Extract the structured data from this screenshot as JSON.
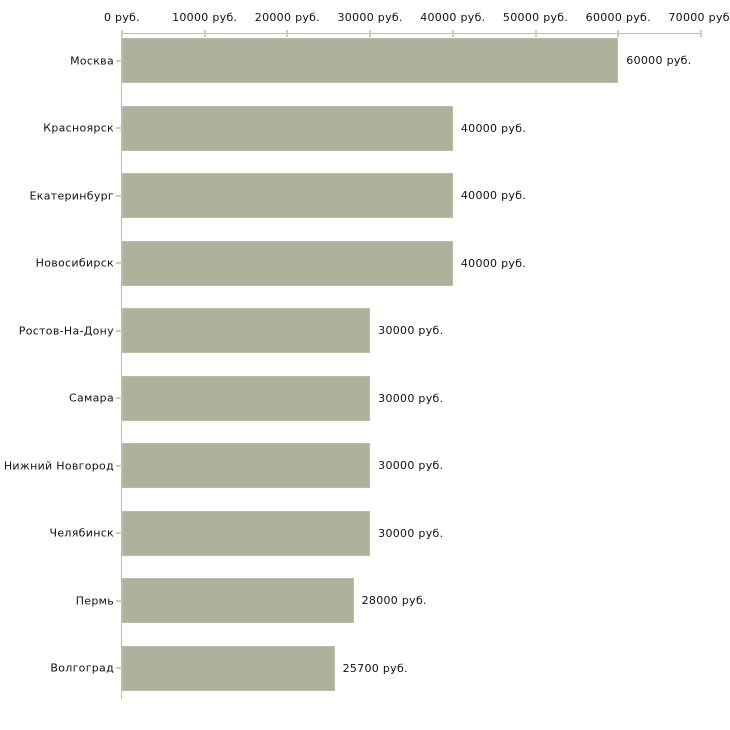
{
  "chart_data": {
    "type": "bar",
    "orientation": "horizontal",
    "title": "",
    "xlabel": "",
    "ylabel": "",
    "xlim": [
      0,
      70000
    ],
    "grid": false,
    "legend": "none",
    "currency_unit": "руб.",
    "categories": [
      "Москва",
      "Красноярск",
      "Екатеринбург",
      "Новосибирск",
      "Ростов-На-Дону",
      "Самара",
      "Нижний Новгород",
      "Челябинск",
      "Пермь",
      "Волгоград"
    ],
    "values": [
      60000,
      40000,
      40000,
      40000,
      30000,
      30000,
      30000,
      30000,
      28000,
      25700
    ],
    "value_labels": [
      "60000 руб.",
      "40000 руб.",
      "40000 руб.",
      "40000 руб.",
      "30000 руб.",
      "30000 руб.",
      "30000 руб.",
      "30000 руб.",
      "28000 руб.",
      "25700 руб."
    ],
    "x_tick_labels": [
      "0 руб.",
      "10000 руб.",
      "20000 руб.",
      "30000 руб.",
      "40000 руб.",
      "50000 руб.",
      "60000 руб.",
      "70000 руб."
    ],
    "bar_color": "#aeb29b",
    "axis_color": "#bbbbbb",
    "tick_color": "#cfcfa6",
    "text_color": "#111111"
  }
}
